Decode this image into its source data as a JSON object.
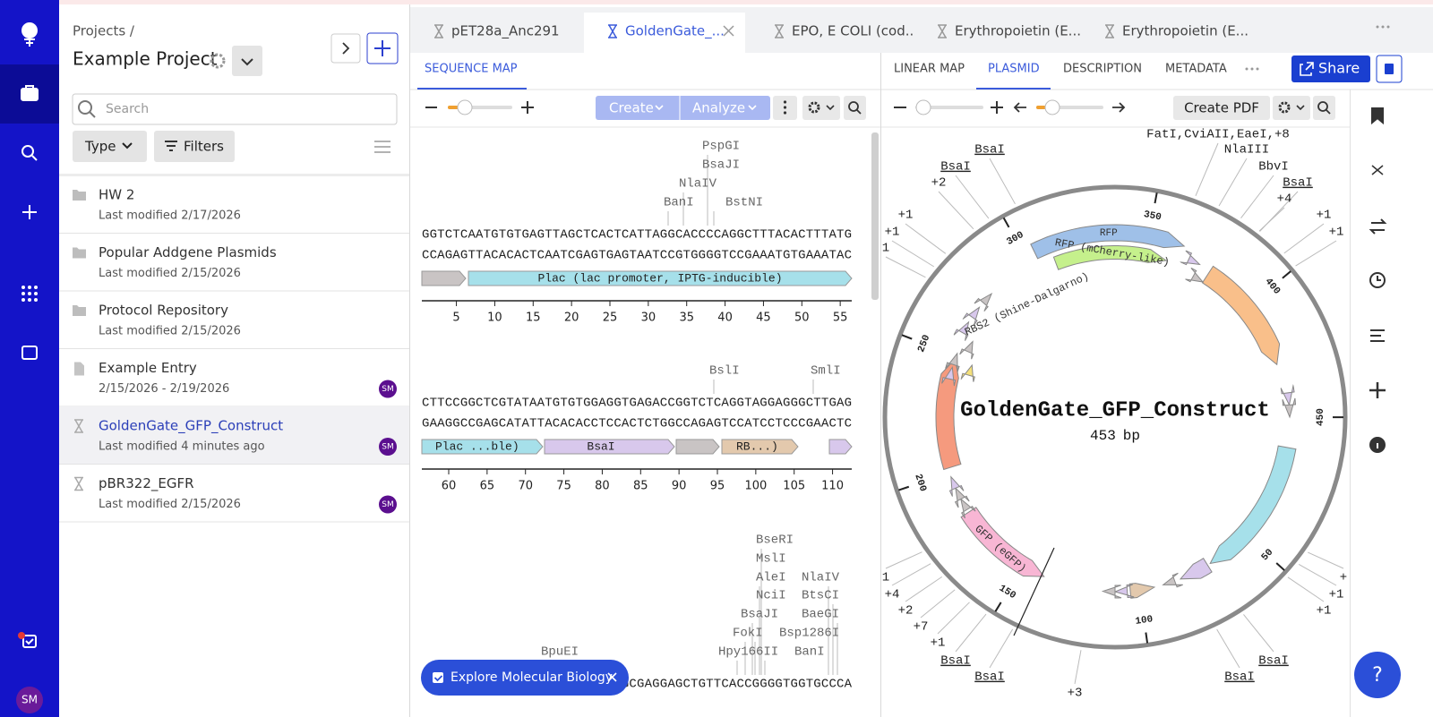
{
  "nav": {
    "avatar": "SM"
  },
  "projects": {
    "breadcrumb": "Projects /",
    "title": "Example Project",
    "search_placeholder": "Search",
    "type_filter": "Type",
    "filters": "Filters",
    "items": [
      {
        "name": "HW 2",
        "meta": "Last modified 2/17/2026",
        "kind": "folder"
      },
      {
        "name": "Popular Addgene Plasmids",
        "meta": "Last modified 2/15/2026",
        "kind": "folder"
      },
      {
        "name": "Protocol Repository",
        "meta": "Last modified 2/15/2026",
        "kind": "folder"
      },
      {
        "name": "Example Entry",
        "meta": "2/15/2026 - 2/19/2026",
        "kind": "entry",
        "owner": "SM"
      },
      {
        "name": "GoldenGate_GFP_Construct",
        "meta": "Last modified 4 minutes ago",
        "kind": "sequence",
        "owner": "SM",
        "selected": true
      },
      {
        "name": "pBR322_EGFR",
        "meta": "Last modified 2/15/2026",
        "kind": "sequence",
        "owner": "SM"
      }
    ]
  },
  "tabs": {
    "active": 1,
    "items": [
      "pET28a_Anc291",
      "GoldenGate_...",
      "EPO, E COLI (cod...",
      "Erythropoietin (E...",
      "Erythropoietin (E..."
    ]
  },
  "sequence_map": {
    "tab": "SEQUENCE MAP",
    "create": "Create",
    "analyze": "Analyze",
    "rows": [
      {
        "enzymes": [
          "PspGI",
          "BsaJI",
          "NlaIV",
          "BanI",
          "BstNI"
        ],
        "top": "GGTCTCAATGTGTGAGTTAGCTCACTCATTAGGCACCCCAGGCTTTACACTTTATG",
        "bottom": "CCAGAGTTACACACTCAATCGAGTGAGTAATCCGTGGGGTCCGAAATGTGAAATAC",
        "features": [
          "Plac (lac promoter, IPTG-inducible)"
        ],
        "ruler": [
          5,
          10,
          15,
          20,
          25,
          30,
          35,
          40,
          45,
          50,
          55
        ]
      },
      {
        "enzymes": [
          "BslI",
          "SmlI"
        ],
        "top": "CTTCCGGCTCGTATAATGTGTGGAGGTGAGACCGGTCTCAGGTAGGAGGGCTTGAG",
        "bottom": "GAAGGCCGAGCATATTACACACCTCCACTCTGGCCAGAGTCCATCCTCCCGAACTC",
        "features": [
          "Plac ...ble)",
          "BsaI",
          "RB...)"
        ],
        "ruler": [
          60,
          65,
          70,
          75,
          80,
          85,
          90,
          95,
          100,
          105,
          110
        ]
      },
      {
        "enzymes": [
          "BseRI",
          "MslI",
          "AleI",
          "NciI",
          "NlaIV",
          "BtsCI",
          "BsaJI",
          "BaeGI",
          "FokI",
          "Bsp1286I",
          "Hpy166II",
          "BanI",
          "BpuEI"
        ],
        "top": "GCGAGGAGCTGTTCACCGGGGTGGTGCCCA"
      }
    ]
  },
  "explore": "Explore Molecular Biology",
  "plasmid_map": {
    "tabs": [
      "LINEAR MAP",
      "PLASMID",
      "DESCRIPTION",
      "METADATA"
    ],
    "active": 1,
    "share": "Share",
    "create_pdf": "Create PDF",
    "name": "GoldenGate_GFP_Construct",
    "length": 453,
    "length_unit": "bp",
    "ticks": [
      50,
      100,
      150,
      200,
      250,
      300,
      350,
      400,
      450
    ],
    "features": [
      "RFP",
      "RFP (mCherry-like)",
      "RBS2 (Shine-Dalgarno)",
      "GFP (eGFP)"
    ],
    "enzymes": [
      "BsaI",
      "BsaI",
      "+2",
      "+1",
      "+1",
      "1",
      "FatI,CviAII,EaeI,+8",
      "NlaIII",
      "BbvI",
      "BsaI",
      "+4",
      "+1",
      "+1",
      "BsaI",
      "BsaI",
      "BsaI",
      "BsaI",
      "+3",
      "+1",
      "+7",
      "+2",
      "+4",
      "1",
      "+1",
      "+1",
      "+"
    ]
  },
  "help": "?"
}
